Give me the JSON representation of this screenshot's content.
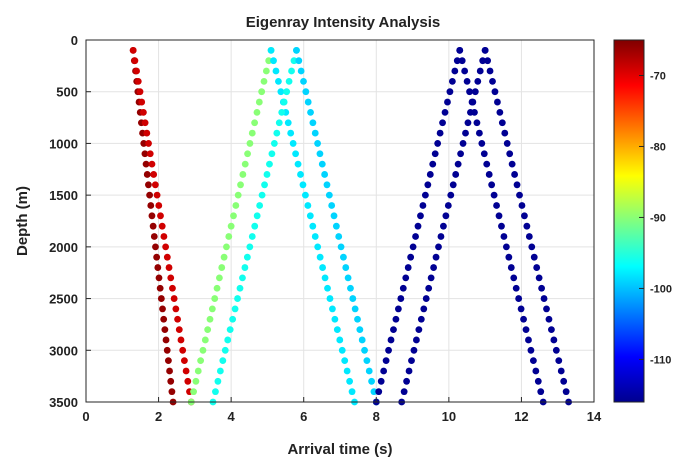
{
  "chart_data": {
    "type": "scatter",
    "title": "Eigenray Intensity Analysis",
    "xlabel": "Arrival time (s)",
    "ylabel": "Depth (m)",
    "xlim": [
      0,
      14
    ],
    "ylim": [
      0,
      3500
    ],
    "y_axis_reversed": true,
    "xticks": [
      0,
      2,
      4,
      6,
      8,
      10,
      12,
      14
    ],
    "yticks": [
      0,
      500,
      1000,
      1500,
      2000,
      2500,
      3000,
      3500
    ],
    "grid": true,
    "colormap": "jet",
    "colorbar": {
      "range": [
        -116,
        -65
      ],
      "ticks": [
        -70,
        -80,
        -90,
        -100,
        -110
      ],
      "tick_labels": [
        "-70",
        "-80",
        "-90",
        "-100",
        "-110"
      ]
    },
    "depth_step": 100,
    "series": [
      {
        "depths": [
          100,
          3500
        ],
        "times": [
          1.3,
          2.4
        ],
        "intensity": -66
      },
      {
        "depths": [
          100,
          3500
        ],
        "times": [
          1.3,
          2.9
        ],
        "intensity": -69
      },
      {
        "depths": [
          100,
          3500
        ],
        "times": [
          5.1,
          2.9
        ],
        "intensity": -90
      },
      {
        "depths": [
          100,
          3500
        ],
        "times": [
          5.1,
          7.4
        ],
        "intensity": -98
      },
      {
        "depths": [
          100,
          3500
        ],
        "times": [
          5.8,
          3.5
        ],
        "intensity": -96
      },
      {
        "depths": [
          100,
          3500
        ],
        "times": [
          5.8,
          8.0
        ],
        "intensity": -99
      },
      {
        "depths": [
          100,
          3500
        ],
        "times": [
          10.3,
          8.0
        ],
        "intensity": -115
      },
      {
        "depths": [
          100,
          3500
        ],
        "times": [
          10.3,
          12.6
        ],
        "intensity": -115
      },
      {
        "depths": [
          100,
          3500
        ],
        "times": [
          11.0,
          8.7
        ],
        "intensity": -115
      },
      {
        "depths": [
          100,
          3500
        ],
        "times": [
          11.0,
          13.3
        ],
        "intensity": -115
      }
    ]
  }
}
